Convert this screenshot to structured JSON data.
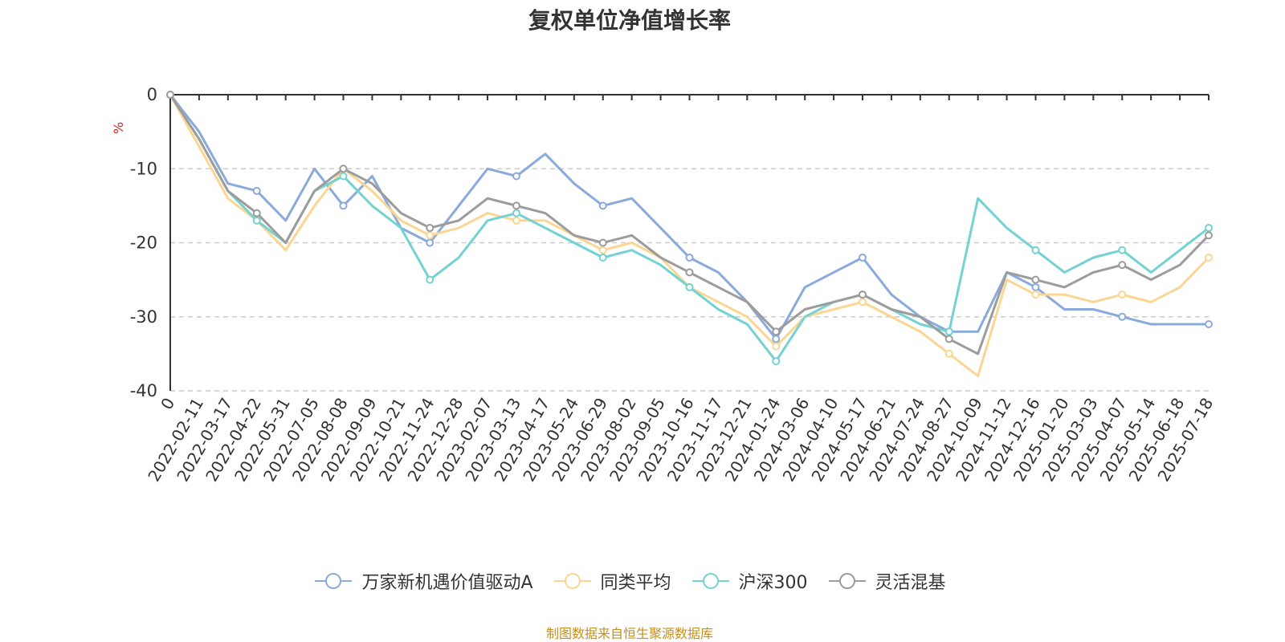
{
  "chart_data": {
    "type": "line",
    "title": "复权单位净值增长率",
    "ylabel": "%",
    "ylim": [
      -40,
      0
    ],
    "yticks": [
      0,
      -10,
      -20,
      -30,
      -40
    ],
    "grid": true,
    "legend_position": "bottom",
    "categories": [
      "0",
      "2022-02-11",
      "2022-03-17",
      "2022-04-22",
      "2022-05-31",
      "2022-07-05",
      "2022-08-08",
      "2022-09-09",
      "2022-10-21",
      "2022-11-24",
      "2022-12-28",
      "2023-02-07",
      "2023-03-13",
      "2023-04-17",
      "2023-05-24",
      "2023-06-29",
      "2023-08-02",
      "2023-09-05",
      "2023-10-16",
      "2023-11-17",
      "2023-12-21",
      "2024-01-24",
      "2024-03-06",
      "2024-04-10",
      "2024-05-17",
      "2024-06-21",
      "2024-07-24",
      "2024-08-27",
      "2024-10-09",
      "2024-11-12",
      "2024-12-16",
      "2025-01-20",
      "2025-03-03",
      "2025-04-07",
      "2025-05-14",
      "2025-06-18",
      "2025-07-18"
    ],
    "series": [
      {
        "name": "万家新机遇价值驱动A",
        "color": "#8aaadc",
        "values": [
          0,
          -5,
          -12,
          -13,
          -17,
          -10,
          -15,
          -11,
          -18,
          -20,
          -15,
          -10,
          -11,
          -8,
          -12,
          -15,
          -14,
          -18,
          -22,
          -24,
          -28,
          -33,
          -26,
          -24,
          -22,
          -27,
          -30,
          -32,
          -32,
          -24,
          -26,
          -29,
          -29,
          -30,
          -31,
          -31,
          -31
        ]
      },
      {
        "name": "同类平均",
        "color": "#fbd692",
        "values": [
          0,
          -7,
          -14,
          -17,
          -21,
          -15,
          -10,
          -13,
          -17,
          -19,
          -18,
          -16,
          -17,
          -17,
          -19,
          -21,
          -20,
          -22,
          -26,
          -28,
          -30,
          -34,
          -30,
          -29,
          -28,
          -30,
          -32,
          -35,
          -38,
          -25,
          -27,
          -27,
          -28,
          -27,
          -28,
          -26,
          -22
        ]
      },
      {
        "name": "沪深300",
        "color": "#74d2d2",
        "values": [
          0,
          -6,
          -13,
          -17,
          -20,
          -13,
          -11,
          -15,
          -18,
          -25,
          -22,
          -17,
          -16,
          -18,
          -20,
          -22,
          -21,
          -23,
          -26,
          -29,
          -31,
          -36,
          -30,
          -28,
          -27,
          -29,
          -31,
          -32,
          -14,
          -18,
          -21,
          -24,
          -22,
          -21,
          -24,
          -21,
          -18
        ]
      },
      {
        "name": "灵活混基",
        "color": "#9c9c9c",
        "values": [
          0,
          -6,
          -13,
          -16,
          -20,
          -13,
          -10,
          -12,
          -16,
          -18,
          -17,
          -14,
          -15,
          -16,
          -19,
          -20,
          -19,
          -22,
          -24,
          -26,
          -28,
          -32,
          -29,
          -28,
          -27,
          -29,
          -30,
          -33,
          -35,
          -24,
          -25,
          -26,
          -24,
          -23,
          -25,
          -23,
          -19
        ]
      }
    ]
  },
  "footer": {
    "source": "制图数据来自恒生聚源数据库"
  }
}
